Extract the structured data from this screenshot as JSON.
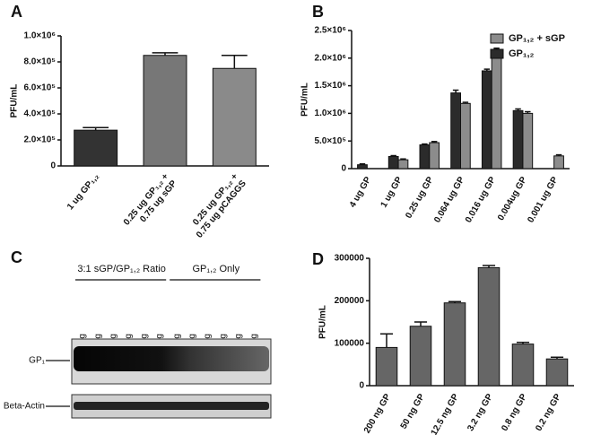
{
  "chart_data": [
    {
      "panel": "A",
      "type": "bar",
      "y_label": "PFU/mL",
      "categories": [
        [
          "1 ug GP₁,₂"
        ],
        [
          "0.25 ug GP₁,₂ +",
          "0.75 ug sGP"
        ],
        [
          "0.25 ug GP₁,₂ +",
          "0.75 ug pCAGGS"
        ]
      ],
      "values": [
        275000,
        850000,
        750000
      ],
      "errors": [
        20000,
        20000,
        100000
      ],
      "colors": [
        "#333333",
        "#777777",
        "#8a8a8a"
      ],
      "ylim": [
        0,
        1000000
      ],
      "yticks": [
        0,
        {
          "value": 200000,
          "label": "2.0×10⁵"
        },
        {
          "value": 400000,
          "label": "4.0×10⁵"
        },
        {
          "value": 600000,
          "label": "6.0×10⁵"
        },
        {
          "value": 800000,
          "label": "8.0×10⁵"
        },
        {
          "value": 1000000,
          "label": "1.0×10⁶"
        }
      ]
    },
    {
      "panel": "B",
      "type": "bar",
      "y_label": "PFU/mL",
      "categories": [
        "4 ug GP",
        "1 ug GP",
        "0.25 ug GP",
        "0.064 ug GP",
        "0.016 ug GP",
        "0.004ug GP",
        "0.001 ug GP"
      ],
      "series": [
        {
          "name": "GP₁,₂",
          "color": "#2b2b2b",
          "values": [
            70000,
            220000,
            430000,
            1370000,
            1770000,
            1050000,
            0
          ],
          "errors": [
            15000,
            15000,
            15000,
            50000,
            30000,
            30000,
            0
          ]
        },
        {
          "name": "GP₁,₂ + sGP",
          "color": "#8c8c8c",
          "values": [
            0,
            160000,
            470000,
            1180000,
            2150000,
            1000000,
            230000
          ],
          "errors": [
            0,
            15000,
            20000,
            20000,
            30000,
            30000,
            20000
          ]
        }
      ],
      "legend": "upper right",
      "ylim": [
        0,
        2500000
      ],
      "yticks": [
        0,
        {
          "value": 500000,
          "label": "5.0×10⁵"
        },
        {
          "value": 1000000,
          "label": "1.0×10⁶"
        },
        {
          "value": 1500000,
          "label": "1.5×10⁶"
        },
        {
          "value": 2000000,
          "label": "2.0×10⁶"
        },
        {
          "value": 2500000,
          "label": "2.5×10⁶"
        }
      ]
    },
    {
      "panel": "D",
      "type": "bar",
      "y_label": "PFU/mL",
      "categories": [
        "200 ng GP",
        "50 ng GP",
        "12.5 ng GP",
        "3.2 ng GP",
        "0.8 ng GP",
        "0.2 ng GP"
      ],
      "values": [
        90000,
        140000,
        195000,
        278000,
        98000,
        63000
      ],
      "errors": [
        32000,
        10000,
        3000,
        5000,
        4000,
        4000
      ],
      "color": "#666666",
      "ylim": [
        0,
        300000
      ],
      "yticks": [
        0,
        100000,
        200000,
        300000
      ]
    }
  ],
  "blot": {
    "panel": "C",
    "groups": [
      {
        "label": "3:1 sGP/GP₁,₂ Ratio",
        "lanes": [
          "4 ug",
          "1 ug",
          "0.25 ug",
          "0.064 ug",
          "0.016 ug",
          "0.004 ug"
        ]
      },
      {
        "label": "GP₁,₂ Only",
        "lanes": [
          "4 ug",
          "1 ug",
          "0.25 ug",
          "0.064 ug",
          "0.016 ug",
          "0.004 ug"
        ]
      }
    ],
    "rows": [
      "GP₁",
      "Beta-Actin"
    ]
  }
}
